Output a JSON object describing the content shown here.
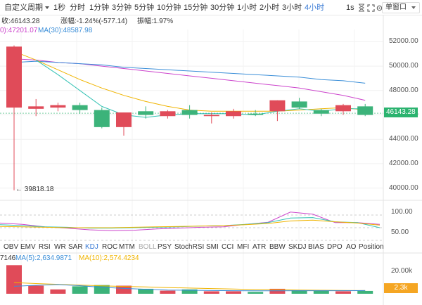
{
  "toolbar": {
    "custom_period": "自定义周期",
    "timeframes": [
      "1秒",
      "分时",
      "1分钟",
      "3分钟",
      "5分钟",
      "10分钟",
      "15分钟",
      "30分钟",
      "1小时",
      "2小时",
      "3小时",
      "4小时"
    ],
    "active_timeframe": "4小时",
    "mode_label": "1s",
    "chart_style": "单窗口",
    "icons": [
      "hourglass-icon",
      "fullscreen-icon",
      "settings-icon"
    ]
  },
  "ohlc_info": {
    "close": "收:46143.28",
    "change": "涨幅:-1.24%(-577.14)",
    "amplitude": "振幅:1.97%"
  },
  "ma_info": {
    "ma_a": "0):47201.07",
    "ma_b": "MA(30):48587.98"
  },
  "price_axis": [
    "52000.00",
    "50000.00",
    "48000.00",
    "46000.00",
    "44000.00",
    "42000.00",
    "40000.00"
  ],
  "last_price_tag": "46143.28",
  "low_annotation": "39818.18",
  "osc_axis": [
    "100.00",
    "50.00"
  ],
  "indicator_tabs": [
    "OBV",
    "EMV",
    "RSI",
    "WR",
    "SAR",
    "KDJ",
    "ROC",
    "MTM",
    "BOLL",
    "PSY",
    "StochRSI",
    "SMI",
    "CCI",
    "MFI",
    "ATR",
    "BBW",
    "SKDJ",
    "BIAS",
    "DPO",
    "AO",
    "Position"
  ],
  "active_indicator": "KDJ",
  "disabled_indicator": "BOLL",
  "volume_info": {
    "id_fragment": "7146",
    "ma5": "MA(5):2,634.9871",
    "ma10": "MA(10):2,574.4234"
  },
  "volume_axis": [
    "20.00k"
  ],
  "volume_tag": "2.3k",
  "colors": {
    "up": "#3cb37a",
    "down": "#e04b59",
    "accent": "#3a7bd5",
    "ma_a": "#cc44cc",
    "ma_b": "#3a8ed8",
    "ma_c": "#f0b400",
    "ma_d": "#33c2b4",
    "price_tag": "#2bb36f",
    "volume_tag": "#f5a623"
  },
  "chart_data": {
    "type": "candlestick",
    "y_range": [
      39000,
      53000
    ],
    "candles": [
      {
        "open": 51600,
        "close": 46600,
        "high": 51700,
        "low": 39818.18,
        "dir": "down"
      },
      {
        "open": 46700,
        "close": 46500,
        "high": 47300,
        "low": 45900,
        "dir": "down"
      },
      {
        "open": 46800,
        "close": 46600,
        "high": 47000,
        "low": 46300,
        "dir": "down"
      },
      {
        "open": 46400,
        "close": 46800,
        "high": 47000,
        "low": 46100,
        "dir": "up"
      },
      {
        "open": 45000,
        "close": 46400,
        "high": 46600,
        "low": 44900,
        "dir": "up"
      },
      {
        "open": 46200,
        "close": 45000,
        "high": 46200,
        "low": 44300,
        "dir": "down"
      },
      {
        "open": 46000,
        "close": 46300,
        "high": 46700,
        "low": 45700,
        "dir": "up"
      },
      {
        "open": 46300,
        "close": 45900,
        "high": 46400,
        "low": 45700,
        "dir": "down"
      },
      {
        "open": 46000,
        "close": 46400,
        "high": 46800,
        "low": 45700,
        "dir": "up"
      },
      {
        "open": 46000,
        "close": 45900,
        "high": 46200,
        "low": 45300,
        "dir": "down"
      },
      {
        "open": 46300,
        "close": 45900,
        "high": 46500,
        "low": 45700,
        "dir": "down"
      },
      {
        "open": 46000,
        "close": 46100,
        "high": 46400,
        "low": 45900,
        "dir": "up"
      },
      {
        "open": 47200,
        "close": 46300,
        "high": 47200,
        "low": 45500,
        "dir": "down"
      },
      {
        "open": 46600,
        "close": 47100,
        "high": 47400,
        "low": 46500,
        "dir": "up"
      },
      {
        "open": 46100,
        "close": 46400,
        "high": 46500,
        "low": 45900,
        "dir": "up"
      },
      {
        "open": 46800,
        "close": 46300,
        "high": 46900,
        "low": 46000,
        "dir": "down"
      },
      {
        "open": 46000,
        "close": 46700,
        "high": 46900,
        "low": 45900,
        "dir": "up"
      }
    ],
    "ma_lines": [
      {
        "color": "#cc44cc",
        "values": [
          50600,
          50500,
          50300,
          50200,
          50000,
          49800,
          49600,
          49400,
          49200,
          49000,
          48800,
          48600,
          48400,
          48200,
          47900,
          47600,
          47200
        ]
      },
      {
        "color": "#3a8ed8",
        "values": [
          50300,
          50400,
          50300,
          50200,
          50100,
          49900,
          49800,
          49700,
          49600,
          49500,
          49400,
          49300,
          49200,
          49100,
          48900,
          48800,
          48600
        ]
      },
      {
        "color": "#f0b400",
        "values": [
          51200,
          50500,
          49700,
          48900,
          48200,
          47600,
          47100,
          46700,
          46400,
          46300,
          46300,
          46300,
          46300,
          46400,
          46500,
          46600,
          46400
        ]
      },
      {
        "color": "#33c2b4",
        "values": [
          null,
          50500,
          49300,
          48000,
          46700,
          46000,
          45800,
          46000,
          46100,
          46100,
          46100,
          46000,
          46300,
          46500,
          46300,
          46500,
          46500
        ]
      }
    ],
    "oscillator": {
      "y_range": [
        20,
        110
      ],
      "lines": [
        {
          "color": "#cc44cc",
          "values": [
            61,
            58,
            52,
            49,
            45,
            43,
            44,
            47,
            49,
            51,
            52,
            58,
            63,
            87,
            82,
            62,
            62,
            58
          ]
        },
        {
          "color": "#33c2b4",
          "values": [
            57,
            55,
            52,
            51,
            49,
            49,
            50,
            51,
            52,
            54,
            55,
            58,
            62,
            73,
            74,
            64,
            62,
            50
          ]
        },
        {
          "color": "#f0b400",
          "values": [
            53,
            52,
            51,
            50,
            50,
            50,
            51,
            52,
            53,
            54,
            55,
            57,
            60,
            66,
            68,
            64,
            61,
            56
          ]
        }
      ],
      "reference_levels": [
        80,
        50,
        20
      ]
    },
    "volume": {
      "y_range": [
        0,
        26000
      ],
      "bars": [
        {
          "value": 23000,
          "dir": "down"
        },
        {
          "value": 6500,
          "dir": "down"
        },
        {
          "value": 3500,
          "dir": "down"
        },
        {
          "value": 6000,
          "dir": "up"
        },
        {
          "value": 7000,
          "dir": "up"
        },
        {
          "value": 6500,
          "dir": "down"
        },
        {
          "value": 4000,
          "dir": "up"
        },
        {
          "value": 2500,
          "dir": "down"
        },
        {
          "value": 3500,
          "dir": "up"
        },
        {
          "value": 2000,
          "dir": "down"
        },
        {
          "value": 2000,
          "dir": "down"
        },
        {
          "value": 1500,
          "dir": "up"
        },
        {
          "value": 4000,
          "dir": "down"
        },
        {
          "value": 3000,
          "dir": "up"
        },
        {
          "value": 2500,
          "dir": "up"
        },
        {
          "value": 2000,
          "dir": "down"
        },
        {
          "value": 2300,
          "dir": "up"
        }
      ],
      "ma_lines": [
        {
          "color": "#f0b400",
          "values": [
            9000,
            8200,
            7600,
            7000,
            6400,
            5900,
            5500,
            5000,
            4600,
            4200,
            3800,
            3400,
            3200,
            3000,
            2800,
            2700,
            2600
          ]
        },
        {
          "color": "#3a8ed8",
          "values": [
            6000,
            6800,
            7400,
            6500,
            5200,
            4300,
            3600,
            3000,
            2800,
            2600,
            2500,
            2400,
            2400,
            2500,
            2500,
            2500,
            2600
          ]
        }
      ]
    }
  }
}
